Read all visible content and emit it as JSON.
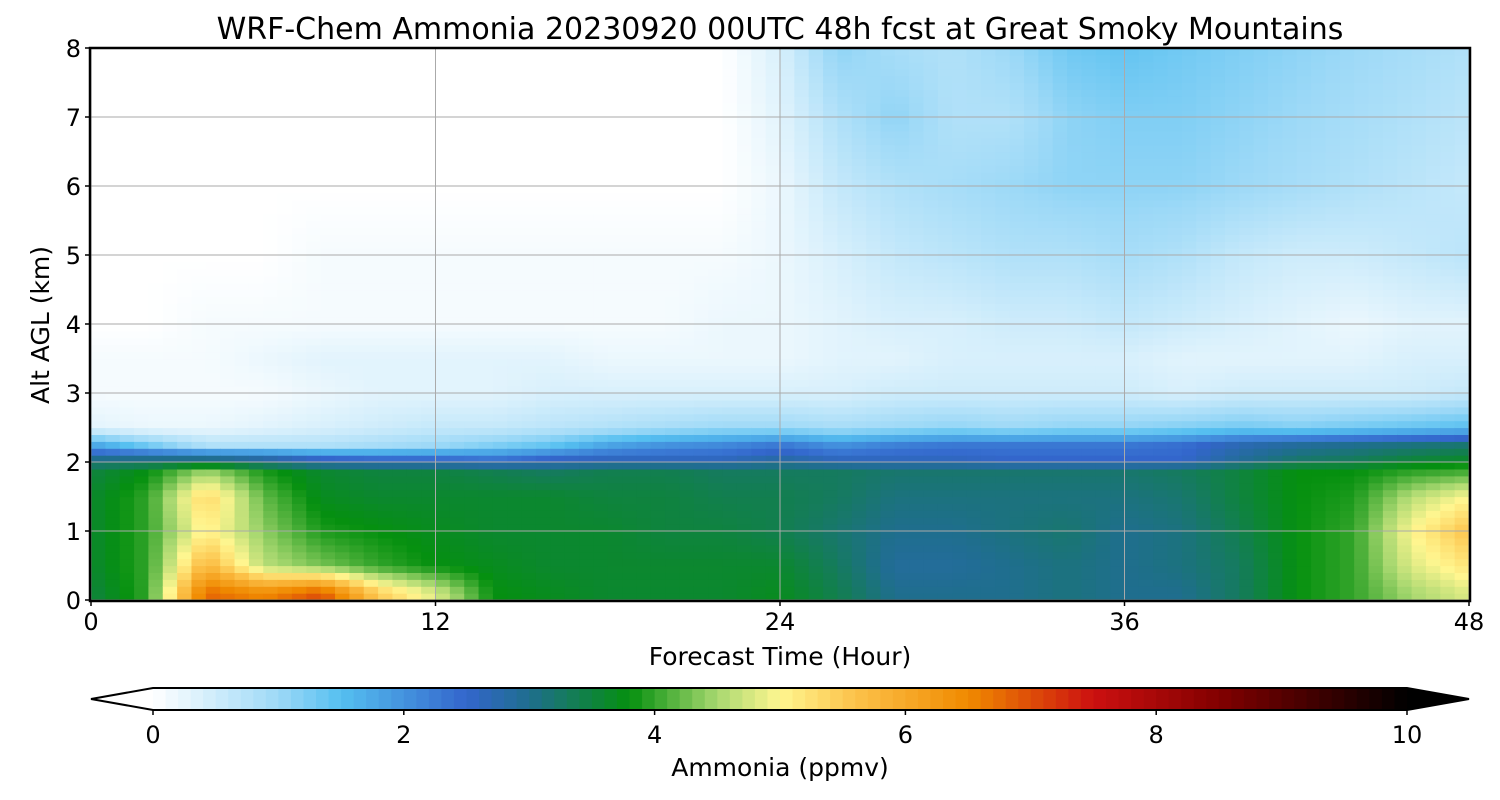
{
  "chart_data": {
    "type": "heatmap",
    "title": "WRF-Chem Ammonia  20230920 00UTC 48h fcst at Great Smoky Mountains",
    "xlabel": "Forecast Time (Hour)",
    "ylabel": "Alt AGL (km)",
    "xlim": [
      0,
      48
    ],
    "ylim": [
      0,
      8
    ],
    "xticks": [
      "0",
      "12",
      "24",
      "36",
      "48"
    ],
    "yticks": [
      "0",
      "1",
      "2",
      "3",
      "4",
      "5",
      "6",
      "7",
      "8"
    ],
    "grid": true,
    "colorbar": {
      "label": "Ammonia  (ppmv)",
      "min": 0,
      "max": 10,
      "ticks": [
        "0",
        "2",
        "4",
        "6",
        "8",
        "10"
      ],
      "extend": "both",
      "colors": [
        {
          "v": 0.0,
          "c": "#ffffff"
        },
        {
          "v": 1.0,
          "c": "#9dd9f7"
        },
        {
          "v": 1.5,
          "c": "#55bff0"
        },
        {
          "v": 2.5,
          "c": "#3366cc"
        },
        {
          "v": 3.0,
          "c": "#1f6e8e"
        },
        {
          "v": 3.8,
          "c": "#05900f"
        },
        {
          "v": 4.5,
          "c": "#a8d870"
        },
        {
          "v": 5.0,
          "c": "#fff690"
        },
        {
          "v": 5.6,
          "c": "#fcc24a"
        },
        {
          "v": 6.5,
          "c": "#f08a00"
        },
        {
          "v": 7.5,
          "c": "#cc1010"
        },
        {
          "v": 8.5,
          "c": "#820000"
        },
        {
          "v": 10.0,
          "c": "#000000"
        }
      ]
    },
    "hours": [
      0,
      2,
      4,
      6,
      8,
      10,
      12,
      14,
      16,
      18,
      20,
      22,
      24,
      26,
      28,
      30,
      32,
      34,
      36,
      38,
      40,
      42,
      44,
      46,
      48
    ],
    "altitudes_km": [
      0.1,
      0.5,
      1.0,
      1.5,
      1.85,
      2.05,
      2.25,
      2.5,
      3.0,
      3.5,
      4.0,
      5.0,
      6.0,
      7.0,
      8.0
    ],
    "values": [
      [
        3.5,
        4.0,
        6.8,
        6.5,
        7.0,
        5.5,
        4.8,
        3.8,
        3.7,
        3.6,
        3.6,
        3.6,
        3.7,
        3.4,
        3.0,
        3.0,
        3.0,
        3.1,
        3.0,
        3.0,
        3.3,
        3.8,
        4.0,
        4.5,
        4.8
      ],
      [
        3.6,
        4.0,
        5.8,
        4.6,
        4.3,
        4.0,
        3.8,
        3.7,
        3.6,
        3.6,
        3.6,
        3.6,
        3.6,
        3.3,
        2.9,
        2.9,
        3.0,
        3.1,
        3.0,
        3.1,
        3.3,
        3.8,
        4.0,
        4.8,
        5.2
      ],
      [
        3.6,
        4.0,
        5.1,
        4.4,
        3.9,
        3.8,
        3.7,
        3.6,
        3.6,
        3.6,
        3.5,
        3.5,
        3.4,
        3.2,
        3.0,
        3.0,
        3.1,
        3.2,
        3.0,
        3.1,
        3.4,
        3.8,
        4.0,
        5.0,
        5.6
      ],
      [
        3.6,
        4.0,
        5.4,
        4.2,
        3.7,
        3.6,
        3.6,
        3.6,
        3.6,
        3.5,
        3.5,
        3.4,
        3.4,
        3.3,
        3.1,
        3.1,
        3.1,
        3.1,
        3.1,
        3.2,
        3.5,
        3.8,
        3.9,
        4.6,
        5.0
      ],
      [
        3.5,
        3.8,
        4.5,
        3.9,
        3.6,
        3.5,
        3.5,
        3.4,
        3.3,
        3.4,
        3.4,
        3.3,
        3.3,
        3.3,
        3.2,
        3.2,
        3.2,
        3.2,
        3.2,
        3.3,
        3.5,
        3.8,
        3.8,
        4.0,
        4.1
      ],
      [
        3.0,
        3.0,
        3.0,
        2.8,
        2.5,
        2.4,
        2.4,
        2.3,
        2.5,
        2.6,
        2.6,
        2.6,
        2.8,
        2.6,
        2.6,
        2.6,
        2.5,
        2.5,
        2.5,
        2.5,
        2.9,
        3.2,
        3.3,
        3.5,
        3.6
      ],
      [
        1.8,
        1.3,
        0.8,
        0.8,
        0.8,
        0.9,
        1.0,
        1.2,
        1.4,
        1.8,
        2.0,
        2.1,
        2.3,
        2.0,
        2.2,
        2.3,
        2.3,
        2.3,
        2.3,
        2.4,
        2.7,
        2.9,
        3.0,
        3.1,
        3.2
      ],
      [
        0.3,
        0.2,
        0.2,
        0.3,
        0.4,
        0.5,
        0.6,
        0.6,
        0.7,
        0.8,
        0.9,
        1.0,
        1.0,
        0.9,
        1.0,
        1.1,
        1.0,
        1.1,
        1.1,
        1.2,
        1.3,
        1.2,
        1.3,
        1.4,
        1.5
      ],
      [
        0.1,
        0.1,
        0.1,
        0.1,
        0.2,
        0.3,
        0.3,
        0.3,
        0.4,
        0.4,
        0.4,
        0.4,
        0.4,
        0.4,
        0.5,
        0.5,
        0.5,
        0.5,
        0.5,
        0.4,
        0.5,
        0.5,
        0.5,
        0.5,
        0.6
      ],
      [
        0.1,
        0.1,
        0.1,
        0.2,
        0.3,
        0.3,
        0.3,
        0.3,
        0.3,
        0.2,
        0.2,
        0.2,
        0.2,
        0.3,
        0.3,
        0.4,
        0.4,
        0.4,
        0.4,
        0.3,
        0.3,
        0.3,
        0.3,
        0.4,
        0.4
      ],
      [
        0.0,
        0.0,
        0.1,
        0.1,
        0.1,
        0.1,
        0.1,
        0.1,
        0.1,
        0.1,
        0.1,
        0.2,
        0.2,
        0.3,
        0.4,
        0.4,
        0.5,
        0.5,
        0.6,
        0.5,
        0.4,
        0.3,
        0.2,
        0.3,
        0.3
      ],
      [
        0.0,
        0.0,
        0.0,
        0.0,
        0.1,
        0.1,
        0.1,
        0.1,
        0.1,
        0.1,
        0.1,
        0.1,
        0.2,
        0.4,
        0.6,
        0.7,
        0.8,
        0.8,
        0.9,
        0.8,
        0.6,
        0.5,
        0.5,
        0.6,
        0.7
      ],
      [
        0.0,
        0.0,
        0.0,
        0.0,
        0.0,
        0.0,
        0.0,
        0.0,
        0.0,
        0.0,
        0.0,
        0.0,
        0.2,
        0.6,
        0.8,
        0.9,
        1.0,
        1.1,
        1.1,
        1.1,
        1.0,
        0.9,
        0.8,
        0.7,
        0.6
      ],
      [
        0.0,
        0.0,
        0.0,
        0.0,
        0.0,
        0.0,
        0.0,
        0.0,
        0.0,
        0.0,
        0.0,
        0.0,
        0.3,
        0.8,
        1.1,
        0.8,
        0.8,
        1.1,
        1.2,
        1.2,
        1.1,
        1.0,
        0.9,
        0.8,
        0.7
      ],
      [
        0.0,
        0.0,
        0.0,
        0.0,
        0.0,
        0.0,
        0.0,
        0.0,
        0.0,
        0.0,
        0.0,
        0.0,
        0.4,
        1.1,
        0.9,
        0.8,
        1.0,
        1.3,
        1.4,
        1.3,
        1.2,
        1.1,
        1.0,
        0.9,
        0.8
      ]
    ]
  }
}
